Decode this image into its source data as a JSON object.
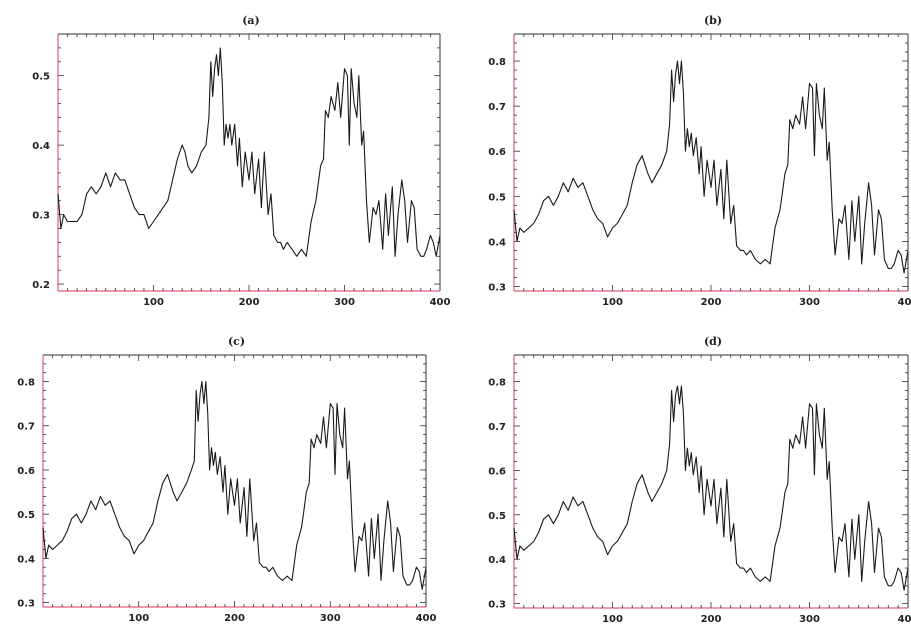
{
  "chart_data": [
    {
      "type": "line",
      "title": "(a)",
      "xlabel": "",
      "ylabel": "",
      "xlim": [
        0,
        400
      ],
      "ylim": [
        0.19,
        0.56
      ],
      "xticks": [
        100,
        200,
        300,
        400
      ],
      "xtick_labels": [
        "100",
        "200",
        "300",
        "400"
      ],
      "yticks": [
        0.2,
        0.3,
        0.4,
        0.5
      ],
      "ytick_labels": [
        "0.2",
        "0.3",
        "0.4",
        "0.5"
      ],
      "axis_colors": {
        "left": "#e0607a",
        "bottom": "#e0607a",
        "right": "#333333",
        "top": "#333333"
      },
      "grid": false,
      "series": [
        {
          "x": [
            0,
            3,
            6,
            10,
            15,
            20,
            25,
            30,
            35,
            40,
            45,
            50,
            55,
            60,
            65,
            70,
            75,
            80,
            85,
            90,
            95,
            100,
            105,
            110,
            115,
            120,
            125,
            130,
            133,
            136,
            140,
            145,
            150,
            155,
            158,
            160,
            162,
            164,
            166,
            168,
            170,
            172,
            174,
            176,
            178,
            180,
            182,
            185,
            188,
            190,
            193,
            196,
            200,
            203,
            206,
            210,
            213,
            216,
            220,
            223,
            226,
            230,
            233,
            236,
            240,
            245,
            250,
            255,
            260,
            265,
            270,
            272,
            275,
            278,
            280,
            283,
            286,
            290,
            293,
            296,
            300,
            303,
            305,
            307,
            310,
            313,
            315,
            318,
            320,
            323,
            326,
            330,
            333,
            336,
            340,
            343,
            346,
            350,
            353,
            356,
            360,
            363,
            366,
            370,
            373,
            376,
            380,
            383,
            386,
            390,
            393,
            396,
            400
          ],
          "y": [
            0.33,
            0.28,
            0.3,
            0.29,
            0.29,
            0.29,
            0.3,
            0.33,
            0.34,
            0.33,
            0.34,
            0.36,
            0.34,
            0.36,
            0.35,
            0.35,
            0.33,
            0.31,
            0.3,
            0.3,
            0.28,
            0.29,
            0.3,
            0.31,
            0.32,
            0.35,
            0.38,
            0.4,
            0.39,
            0.37,
            0.36,
            0.37,
            0.39,
            0.4,
            0.44,
            0.52,
            0.47,
            0.51,
            0.53,
            0.5,
            0.54,
            0.49,
            0.4,
            0.43,
            0.41,
            0.43,
            0.4,
            0.43,
            0.37,
            0.41,
            0.34,
            0.39,
            0.35,
            0.39,
            0.33,
            0.38,
            0.31,
            0.39,
            0.3,
            0.33,
            0.27,
            0.26,
            0.26,
            0.25,
            0.26,
            0.25,
            0.24,
            0.25,
            0.24,
            0.29,
            0.32,
            0.34,
            0.37,
            0.38,
            0.45,
            0.44,
            0.47,
            0.45,
            0.49,
            0.44,
            0.51,
            0.5,
            0.4,
            0.51,
            0.46,
            0.44,
            0.5,
            0.4,
            0.42,
            0.32,
            0.26,
            0.31,
            0.3,
            0.32,
            0.25,
            0.33,
            0.27,
            0.34,
            0.24,
            0.3,
            0.35,
            0.32,
            0.26,
            0.32,
            0.31,
            0.25,
            0.24,
            0.24,
            0.25,
            0.27,
            0.26,
            0.24,
            0.27
          ]
        }
      ]
    },
    {
      "type": "line",
      "title": "(b)",
      "xlabel": "",
      "ylabel": "",
      "xlim": [
        0,
        400
      ],
      "ylim": [
        0.29,
        0.86
      ],
      "xticks": [
        100,
        200,
        300,
        400
      ],
      "xtick_labels": [
        "100",
        "200",
        "300",
        "400"
      ],
      "yticks": [
        0.3,
        0.4,
        0.5,
        0.6,
        0.7,
        0.8
      ],
      "ytick_labels": [
        "0.3",
        "0.4",
        "0.5",
        "0.6",
        "0.7",
        "0.8"
      ],
      "axis_colors": {
        "left": "#e0607a",
        "bottom": "#e0607a",
        "right": "#333333",
        "top": "#333333"
      },
      "grid": false,
      "series": [
        {
          "x": [
            0,
            3,
            6,
            10,
            15,
            20,
            25,
            30,
            35,
            40,
            45,
            50,
            55,
            60,
            65,
            70,
            75,
            80,
            85,
            90,
            95,
            100,
            105,
            110,
            115,
            120,
            125,
            130,
            133,
            136,
            140,
            145,
            150,
            155,
            158,
            160,
            162,
            164,
            166,
            168,
            170,
            172,
            174,
            176,
            178,
            180,
            182,
            185,
            188,
            190,
            193,
            196,
            200,
            203,
            206,
            210,
            213,
            216,
            220,
            223,
            226,
            230,
            233,
            236,
            240,
            245,
            250,
            255,
            260,
            265,
            270,
            272,
            275,
            278,
            280,
            283,
            286,
            290,
            293,
            296,
            300,
            303,
            305,
            307,
            310,
            313,
            315,
            318,
            320,
            323,
            326,
            330,
            333,
            336,
            340,
            343,
            346,
            350,
            353,
            356,
            360,
            363,
            366,
            370,
            373,
            376,
            380,
            383,
            386,
            390,
            393,
            396,
            400
          ],
          "y": [
            0.47,
            0.4,
            0.43,
            0.42,
            0.43,
            0.44,
            0.46,
            0.49,
            0.5,
            0.48,
            0.5,
            0.53,
            0.51,
            0.54,
            0.52,
            0.53,
            0.5,
            0.47,
            0.45,
            0.44,
            0.41,
            0.43,
            0.44,
            0.46,
            0.48,
            0.53,
            0.57,
            0.59,
            0.57,
            0.55,
            0.53,
            0.55,
            0.57,
            0.6,
            0.66,
            0.78,
            0.71,
            0.77,
            0.8,
            0.75,
            0.8,
            0.73,
            0.6,
            0.65,
            0.61,
            0.64,
            0.59,
            0.63,
            0.55,
            0.61,
            0.5,
            0.58,
            0.52,
            0.58,
            0.48,
            0.56,
            0.45,
            0.58,
            0.44,
            0.48,
            0.39,
            0.38,
            0.38,
            0.37,
            0.38,
            0.36,
            0.35,
            0.36,
            0.35,
            0.43,
            0.47,
            0.5,
            0.55,
            0.57,
            0.67,
            0.65,
            0.68,
            0.66,
            0.72,
            0.65,
            0.75,
            0.74,
            0.59,
            0.75,
            0.68,
            0.65,
            0.74,
            0.58,
            0.62,
            0.47,
            0.37,
            0.45,
            0.44,
            0.48,
            0.36,
            0.49,
            0.4,
            0.5,
            0.35,
            0.44,
            0.53,
            0.48,
            0.37,
            0.47,
            0.45,
            0.36,
            0.34,
            0.34,
            0.35,
            0.38,
            0.37,
            0.33,
            0.38
          ]
        }
      ]
    },
    {
      "type": "line",
      "title": "(c)",
      "xlabel": "",
      "ylabel": "",
      "xlim": [
        0,
        400
      ],
      "ylim": [
        0.29,
        0.86
      ],
      "xticks": [
        100,
        200,
        300,
        400
      ],
      "xtick_labels": [
        "100",
        "200",
        "300",
        "400"
      ],
      "yticks": [
        0.3,
        0.4,
        0.5,
        0.6,
        0.7,
        0.8
      ],
      "ytick_labels": [
        "0.3",
        "0.4",
        "0.5",
        "0.6",
        "0.7",
        "0.8"
      ],
      "axis_colors": {
        "left": "#e0607a",
        "bottom": "#e0607a",
        "right": "#333333",
        "top": "#333333"
      },
      "grid": false,
      "series": [
        {
          "x": [
            0,
            3,
            6,
            10,
            15,
            20,
            25,
            30,
            35,
            40,
            45,
            50,
            55,
            60,
            65,
            70,
            75,
            80,
            85,
            90,
            95,
            100,
            105,
            110,
            115,
            120,
            125,
            130,
            133,
            136,
            140,
            145,
            150,
            155,
            158,
            160,
            162,
            164,
            166,
            168,
            170,
            172,
            174,
            176,
            178,
            180,
            182,
            185,
            188,
            190,
            193,
            196,
            200,
            203,
            206,
            210,
            213,
            216,
            220,
            223,
            226,
            230,
            233,
            236,
            240,
            245,
            250,
            255,
            260,
            265,
            270,
            272,
            275,
            278,
            280,
            283,
            286,
            290,
            293,
            296,
            300,
            303,
            305,
            307,
            310,
            313,
            315,
            318,
            320,
            323,
            326,
            330,
            333,
            336,
            340,
            343,
            346,
            350,
            353,
            356,
            360,
            363,
            366,
            370,
            373,
            376,
            380,
            383,
            386,
            390,
            393,
            396,
            400
          ],
          "y": [
            0.47,
            0.4,
            0.43,
            0.42,
            0.43,
            0.44,
            0.46,
            0.49,
            0.5,
            0.48,
            0.5,
            0.53,
            0.51,
            0.54,
            0.52,
            0.53,
            0.5,
            0.47,
            0.45,
            0.44,
            0.41,
            0.43,
            0.44,
            0.46,
            0.48,
            0.53,
            0.57,
            0.59,
            0.57,
            0.55,
            0.53,
            0.55,
            0.57,
            0.6,
            0.62,
            0.78,
            0.71,
            0.77,
            0.8,
            0.75,
            0.8,
            0.73,
            0.6,
            0.65,
            0.61,
            0.64,
            0.59,
            0.63,
            0.55,
            0.61,
            0.5,
            0.58,
            0.52,
            0.58,
            0.48,
            0.56,
            0.45,
            0.58,
            0.44,
            0.48,
            0.39,
            0.38,
            0.38,
            0.37,
            0.38,
            0.36,
            0.35,
            0.36,
            0.35,
            0.43,
            0.47,
            0.5,
            0.55,
            0.57,
            0.67,
            0.65,
            0.68,
            0.66,
            0.72,
            0.65,
            0.75,
            0.74,
            0.59,
            0.75,
            0.68,
            0.65,
            0.74,
            0.58,
            0.62,
            0.47,
            0.37,
            0.45,
            0.44,
            0.48,
            0.36,
            0.49,
            0.4,
            0.5,
            0.35,
            0.44,
            0.53,
            0.48,
            0.37,
            0.47,
            0.45,
            0.36,
            0.34,
            0.34,
            0.35,
            0.38,
            0.37,
            0.33,
            0.38
          ]
        }
      ]
    },
    {
      "type": "line",
      "title": "(d)",
      "xlabel": "",
      "ylabel": "",
      "xlim": [
        0,
        400
      ],
      "ylim": [
        0.29,
        0.86
      ],
      "xticks": [
        100,
        200,
        300,
        400
      ],
      "xtick_labels": [
        "100",
        "200",
        "300",
        "400"
      ],
      "yticks": [
        0.3,
        0.4,
        0.5,
        0.6,
        0.7,
        0.8
      ],
      "ytick_labels": [
        "0.3",
        "0.4",
        "0.5",
        "0.6",
        "0.7",
        "0.8"
      ],
      "axis_colors": {
        "left": "#e0607a",
        "bottom": "#e0607a",
        "right": "#333333",
        "top": "#333333"
      },
      "grid": false,
      "series": [
        {
          "x": [
            0,
            3,
            6,
            10,
            15,
            20,
            25,
            30,
            35,
            40,
            45,
            50,
            55,
            60,
            65,
            70,
            75,
            80,
            85,
            90,
            95,
            100,
            105,
            110,
            115,
            120,
            125,
            130,
            133,
            136,
            140,
            145,
            150,
            155,
            158,
            160,
            162,
            164,
            166,
            168,
            170,
            172,
            174,
            176,
            178,
            180,
            182,
            185,
            188,
            190,
            193,
            196,
            200,
            203,
            206,
            210,
            213,
            216,
            220,
            223,
            226,
            230,
            233,
            236,
            240,
            245,
            250,
            255,
            260,
            265,
            270,
            272,
            275,
            278,
            280,
            283,
            286,
            290,
            293,
            296,
            300,
            303,
            305,
            307,
            310,
            313,
            315,
            318,
            320,
            323,
            326,
            330,
            333,
            336,
            340,
            343,
            346,
            350,
            353,
            356,
            360,
            363,
            366,
            370,
            373,
            376,
            380,
            383,
            386,
            390,
            393,
            396,
            400
          ],
          "y": [
            0.47,
            0.4,
            0.43,
            0.42,
            0.43,
            0.44,
            0.46,
            0.49,
            0.5,
            0.48,
            0.5,
            0.53,
            0.51,
            0.54,
            0.52,
            0.53,
            0.5,
            0.47,
            0.45,
            0.44,
            0.41,
            0.43,
            0.44,
            0.46,
            0.48,
            0.53,
            0.57,
            0.59,
            0.57,
            0.55,
            0.53,
            0.55,
            0.57,
            0.6,
            0.66,
            0.78,
            0.71,
            0.77,
            0.79,
            0.75,
            0.79,
            0.73,
            0.6,
            0.65,
            0.61,
            0.64,
            0.59,
            0.63,
            0.55,
            0.61,
            0.5,
            0.58,
            0.52,
            0.58,
            0.48,
            0.56,
            0.45,
            0.58,
            0.44,
            0.48,
            0.39,
            0.38,
            0.38,
            0.37,
            0.38,
            0.36,
            0.35,
            0.36,
            0.35,
            0.43,
            0.47,
            0.5,
            0.55,
            0.57,
            0.67,
            0.65,
            0.68,
            0.66,
            0.72,
            0.65,
            0.75,
            0.74,
            0.59,
            0.75,
            0.68,
            0.65,
            0.74,
            0.58,
            0.62,
            0.47,
            0.37,
            0.45,
            0.44,
            0.48,
            0.36,
            0.49,
            0.4,
            0.5,
            0.35,
            0.44,
            0.53,
            0.48,
            0.37,
            0.47,
            0.45,
            0.36,
            0.34,
            0.34,
            0.35,
            0.38,
            0.37,
            0.33,
            0.38
          ]
        }
      ]
    }
  ]
}
